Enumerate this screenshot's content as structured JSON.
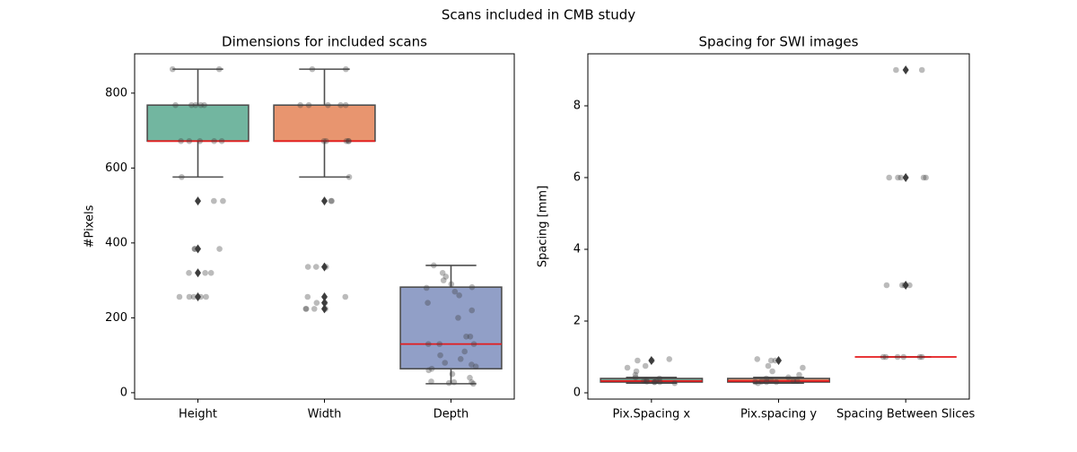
{
  "title": "Scans included in CMB study",
  "chart_data": [
    {
      "type": "box",
      "title": "Dimensions for included scans",
      "ylabel": "#Pixels",
      "ylim": [
        -17,
        905
      ],
      "yticks": [
        0,
        200,
        400,
        600,
        800
      ],
      "median_color": "#e41a1c",
      "boxes": [
        {
          "name": "Height",
          "color": "#72b6a0",
          "whislo": 576,
          "q1": 672,
          "median": 672,
          "q3": 768,
          "whishi": 864,
          "outliers": [
            512,
            384,
            320,
            256
          ],
          "points": [
            864,
            864,
            768,
            768,
            768,
            768,
            768,
            672,
            672,
            672,
            672,
            672,
            576,
            512,
            512,
            384,
            384,
            384,
            320,
            320,
            320,
            256,
            256,
            256,
            256,
            256
          ]
        },
        {
          "name": "Width",
          "color": "#e8956f",
          "whislo": 576,
          "q1": 672,
          "median": 672,
          "q3": 768,
          "whishi": 864,
          "outliers": [
            512,
            336,
            256,
            240,
            224
          ],
          "points": [
            864,
            864,
            768,
            768,
            768,
            768,
            768,
            672,
            672,
            672,
            672,
            672,
            576,
            512,
            512,
            336,
            336,
            336,
            256,
            256,
            240,
            240,
            224,
            224,
            224,
            224
          ]
        },
        {
          "name": "Depth",
          "color": "#919fc7",
          "whislo": 24,
          "q1": 64,
          "median": 130,
          "q3": 282,
          "whishi": 340,
          "outliers": [],
          "points": [
            24,
            26,
            28,
            28,
            30,
            40,
            50,
            60,
            64,
            70,
            75,
            80,
            90,
            100,
            110,
            130,
            130,
            130,
            150,
            150,
            200,
            220,
            240,
            260,
            270,
            280,
            282,
            290,
            300,
            310,
            320,
            340
          ]
        }
      ]
    },
    {
      "type": "box",
      "title": "Spacing for SWI images",
      "ylabel": "Spacing [mm]",
      "ylim": [
        -0.175,
        9.45
      ],
      "yticks": [
        0,
        2,
        4,
        6,
        8
      ],
      "median_color": "#e41a1c",
      "boxes": [
        {
          "name": "Pix.Spacing x",
          "color": "#72b6a0",
          "whislo": 0.27,
          "q1": 0.3,
          "median": 0.33,
          "q3": 0.4,
          "whishi": 0.43,
          "outliers": [
            0.9
          ],
          "points": [
            0.27,
            0.3,
            0.3,
            0.3,
            0.31,
            0.33,
            0.33,
            0.35,
            0.4,
            0.43,
            0.5,
            0.6,
            0.7,
            0.75,
            0.9,
            0.9,
            0.94
          ]
        },
        {
          "name": "Pix.spacing y",
          "color": "#e8956f",
          "whislo": 0.27,
          "q1": 0.3,
          "median": 0.33,
          "q3": 0.4,
          "whishi": 0.43,
          "outliers": [
            0.9
          ],
          "points": [
            0.27,
            0.3,
            0.3,
            0.3,
            0.31,
            0.33,
            0.33,
            0.35,
            0.4,
            0.43,
            0.5,
            0.6,
            0.7,
            0.75,
            0.9,
            0.9,
            0.94
          ]
        },
        {
          "name": "Spacing Between Slices",
          "color": "#919fc7",
          "whislo": 1,
          "q1": 1,
          "median": 1,
          "q3": 1,
          "whishi": 1,
          "outliers": [
            3,
            6,
            9
          ],
          "points": [
            1,
            1,
            1,
            1,
            1,
            1,
            3,
            3,
            3,
            3,
            6,
            6,
            6,
            6,
            6,
            9,
            9
          ]
        }
      ]
    }
  ]
}
